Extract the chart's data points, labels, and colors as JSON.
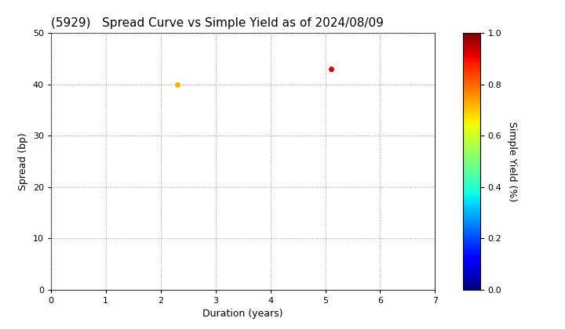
{
  "title": "(5929)   Spread Curve vs Simple Yield as of 2024/08/09",
  "xlabel": "Duration (years)",
  "ylabel": "Spread (bp)",
  "colorbar_label": "Simple Yield (%)",
  "xlim": [
    0,
    7
  ],
  "ylim": [
    0,
    50
  ],
  "xticks": [
    0,
    1,
    2,
    3,
    4,
    5,
    6,
    7
  ],
  "yticks": [
    0,
    10,
    20,
    30,
    40,
    50
  ],
  "colorbar_ticks": [
    0.0,
    0.2,
    0.4,
    0.6,
    0.8,
    1.0
  ],
  "colorbar_min": 0.0,
  "colorbar_max": 1.0,
  "points": [
    {
      "duration": 2.3,
      "spread": 40,
      "simple_yield": 0.72
    },
    {
      "duration": 5.1,
      "spread": 43,
      "simple_yield": 0.92
    }
  ],
  "background_color": "#ffffff",
  "grid_color": "#999999",
  "title_fontsize": 11,
  "axis_label_fontsize": 9,
  "tick_fontsize": 8,
  "marker_size": 4
}
